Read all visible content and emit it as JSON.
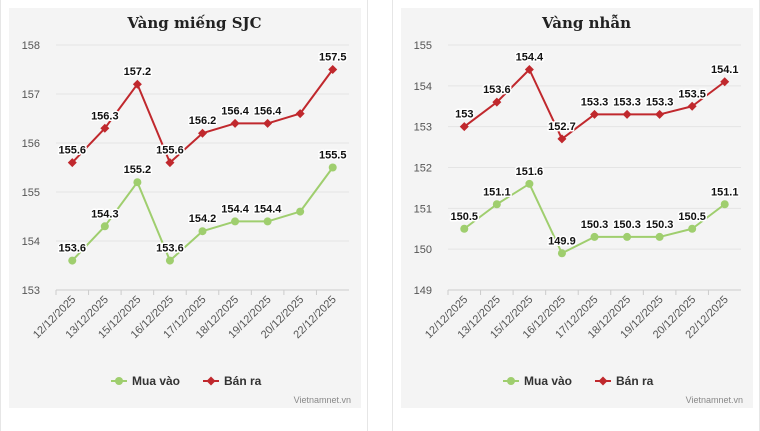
{
  "chart_data": [
    {
      "type": "line",
      "title": "Vàng miếng SJC",
      "categories": [
        "12/12/2025",
        "13/12/2025",
        "15/12/2025",
        "16/12/2025",
        "17/12/2025",
        "18/12/2025",
        "19/12/2025",
        "20/12/2025",
        "22/12/2025"
      ],
      "ylim": [
        153,
        158
      ],
      "yticks": [
        153,
        154,
        155,
        156,
        157,
        158
      ],
      "grid": true,
      "legend_position": "bottom",
      "series": [
        {
          "name": "Mua vào",
          "color": "#9fce6e",
          "marker": "circle",
          "values": [
            153.6,
            154.3,
            155.2,
            153.6,
            154.2,
            154.4,
            154.4,
            154.6,
            155.5
          ],
          "labels": [
            "153.6",
            "154.3",
            "155.2",
            "153.6",
            "154.2",
            "154.4",
            "154.4",
            "",
            "155.5"
          ]
        },
        {
          "name": "Bán ra",
          "color": "#c0282d",
          "marker": "diamond",
          "values": [
            155.6,
            156.3,
            157.2,
            155.6,
            156.2,
            156.4,
            156.4,
            156.6,
            157.5
          ],
          "labels": [
            "155.6",
            "156.3",
            "157.2",
            "155.6",
            "156.2",
            "156.4",
            "156.4",
            "",
            "157.5"
          ]
        }
      ],
      "credit": "Vietnamnet.vn"
    },
    {
      "type": "line",
      "title": "Vàng nhẫn",
      "categories": [
        "12/12/2025",
        "13/12/2025",
        "15/12/2025",
        "16/12/2025",
        "17/12/2025",
        "18/12/2025",
        "19/12/2025",
        "20/12/2025",
        "22/12/2025"
      ],
      "ylim": [
        149,
        155
      ],
      "yticks": [
        149,
        150,
        151,
        152,
        153,
        154,
        155
      ],
      "grid": true,
      "legend_position": "bottom",
      "series": [
        {
          "name": "Mua vào",
          "color": "#9fce6e",
          "marker": "circle",
          "values": [
            150.5,
            151.1,
            151.6,
            149.9,
            150.3,
            150.3,
            150.3,
            150.5,
            151.1
          ],
          "labels": [
            "150.5",
            "151.1",
            "151.6",
            "149.9",
            "150.3",
            "150.3",
            "150.3",
            "150.5",
            "151.1"
          ]
        },
        {
          "name": "Bán ra",
          "color": "#c0282d",
          "marker": "diamond",
          "values": [
            153,
            153.6,
            154.4,
            152.7,
            153.3,
            153.3,
            153.3,
            153.5,
            154.1
          ],
          "labels": [
            "153",
            "153.6",
            "154.4",
            "152.7",
            "153.3",
            "153.3",
            "153.3",
            "153.5",
            "154.1"
          ]
        }
      ],
      "credit": "Vietnamnet.vn"
    }
  ]
}
